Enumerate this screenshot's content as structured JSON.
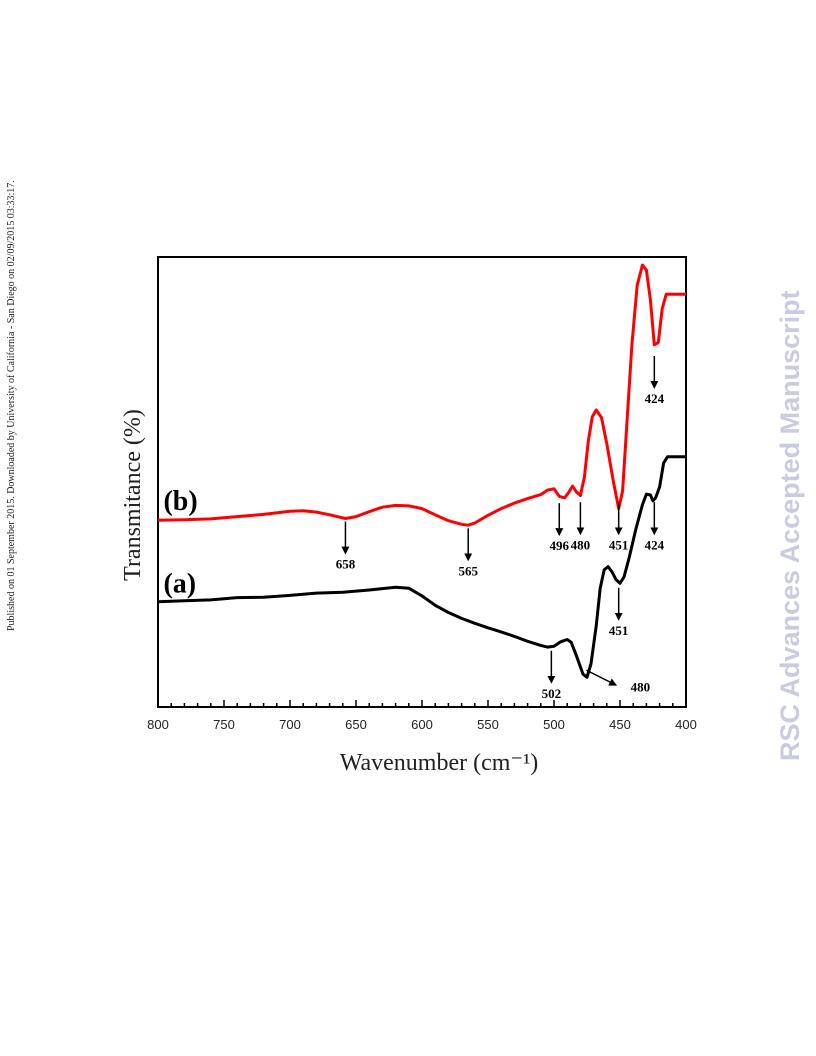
{
  "page": {
    "side_note": "Published on 01 September 2015. Downloaded by University of California - San Diego on 02/09/2015 03:33:17.",
    "watermark": "RSC Advances Accepted Manuscript"
  },
  "chart_data": {
    "type": "line",
    "title": "",
    "xlabel": "Wavenumber (cm⁻¹)",
    "ylabel": "Transmitance (%)",
    "xlim": [
      800,
      400
    ],
    "ylim": [
      0,
      100
    ],
    "x_reversed": true,
    "xticks": [
      800,
      750,
      700,
      650,
      600,
      550,
      500,
      450,
      400
    ],
    "grid": false,
    "y_ticks_labeled": false,
    "series": [
      {
        "name": "(a)",
        "color": "#000000",
        "points": [
          [
            800,
            23.4
          ],
          [
            780,
            23.6
          ],
          [
            760,
            23.8
          ],
          [
            740,
            24.3
          ],
          [
            720,
            24.4
          ],
          [
            700,
            24.8
          ],
          [
            680,
            25.3
          ],
          [
            660,
            25.5
          ],
          [
            640,
            26.0
          ],
          [
            620,
            26.6
          ],
          [
            610,
            26.4
          ],
          [
            600,
            24.7
          ],
          [
            590,
            22.6
          ],
          [
            580,
            21.0
          ],
          [
            570,
            19.7
          ],
          [
            560,
            18.6
          ],
          [
            550,
            17.6
          ],
          [
            540,
            16.7
          ],
          [
            530,
            15.7
          ],
          [
            520,
            14.6
          ],
          [
            510,
            13.7
          ],
          [
            505,
            13.3
          ],
          [
            500,
            13.5
          ],
          [
            495,
            14.5
          ],
          [
            490,
            15.0
          ],
          [
            487,
            14.4
          ],
          [
            483,
            11.4
          ],
          [
            478,
            7.3
          ],
          [
            475,
            6.6
          ],
          [
            472,
            9.6
          ],
          [
            468,
            18.0
          ],
          [
            465,
            26.4
          ],
          [
            462,
            30.5
          ],
          [
            459,
            31.2
          ],
          [
            456,
            30.0
          ],
          [
            453,
            28.3
          ],
          [
            450,
            27.5
          ],
          [
            447,
            28.9
          ],
          [
            443,
            33.2
          ],
          [
            438,
            39.5
          ],
          [
            433,
            44.9
          ],
          [
            430,
            47.3
          ],
          [
            427,
            47.1
          ],
          [
            425,
            45.8
          ],
          [
            423,
            46.5
          ],
          [
            420,
            48.9
          ],
          [
            417,
            54.2
          ],
          [
            414,
            55.6
          ],
          [
            410,
            55.6
          ],
          [
            400,
            55.6
          ]
        ]
      },
      {
        "name": "(b)",
        "color": "#ff0000",
        "points": [
          [
            800,
            41.5
          ],
          [
            780,
            41.6
          ],
          [
            760,
            41.8
          ],
          [
            740,
            42.3
          ],
          [
            720,
            42.8
          ],
          [
            700,
            43.5
          ],
          [
            690,
            43.6
          ],
          [
            680,
            43.3
          ],
          [
            670,
            42.7
          ],
          [
            658,
            41.9
          ],
          [
            650,
            42.3
          ],
          [
            640,
            43.4
          ],
          [
            630,
            44.4
          ],
          [
            620,
            44.8
          ],
          [
            610,
            44.7
          ],
          [
            600,
            44.1
          ],
          [
            590,
            42.7
          ],
          [
            580,
            41.4
          ],
          [
            570,
            40.6
          ],
          [
            565,
            40.4
          ],
          [
            560,
            40.9
          ],
          [
            550,
            42.6
          ],
          [
            540,
            44.1
          ],
          [
            530,
            45.3
          ],
          [
            520,
            46.3
          ],
          [
            510,
            47.2
          ],
          [
            505,
            48.2
          ],
          [
            500,
            48.5
          ],
          [
            496,
            46.8
          ],
          [
            492,
            46.5
          ],
          [
            489,
            47.6
          ],
          [
            486,
            49.1
          ],
          [
            483,
            47.8
          ],
          [
            480,
            47.0
          ],
          [
            477,
            51.1
          ],
          [
            474,
            59.1
          ],
          [
            471,
            64.5
          ],
          [
            468,
            66.0
          ],
          [
            464,
            64.3
          ],
          [
            460,
            58.5
          ],
          [
            455,
            50.1
          ],
          [
            451,
            44.1
          ],
          [
            448,
            48.0
          ],
          [
            445,
            62.0
          ],
          [
            441,
            80.5
          ],
          [
            437,
            93.7
          ],
          [
            433,
            98.2
          ],
          [
            430,
            97.1
          ],
          [
            427,
            90.5
          ],
          [
            424,
            80.5
          ],
          [
            421,
            81.0
          ],
          [
            418,
            88.5
          ],
          [
            415,
            91.7
          ],
          [
            410,
            91.7
          ],
          [
            400,
            91.7
          ]
        ]
      }
    ],
    "annotations": [
      {
        "label": "(b)",
        "x": 783,
        "y": 46.0,
        "kind": "series-label"
      },
      {
        "label": "(a)",
        "x": 783,
        "y": 27.7,
        "kind": "series-label"
      },
      {
        "label": "658",
        "x": 658,
        "y": 41.2,
        "kind": "peak"
      },
      {
        "label": "565",
        "x": 565,
        "y": 39.7,
        "kind": "peak"
      },
      {
        "label": "496",
        "x": 496,
        "y": 45.3,
        "kind": "peak"
      },
      {
        "label": "480",
        "x": 480,
        "y": 45.5,
        "kind": "peak"
      },
      {
        "label": "451",
        "x": 451,
        "y": 45.5,
        "kind": "peak"
      },
      {
        "label": "424",
        "x": 424,
        "y": 45.5,
        "kind": "peak"
      },
      {
        "label": "424",
        "x": 424,
        "y": 78.0,
        "kind": "peak"
      },
      {
        "label": "451",
        "x": 451,
        "y": 26.5,
        "kind": "peak"
      },
      {
        "label": "502",
        "x": 502,
        "y": 12.5,
        "kind": "peak"
      },
      {
        "label": "480",
        "x": 480,
        "y": 7.5,
        "kind": "peak-diagonal"
      }
    ]
  }
}
